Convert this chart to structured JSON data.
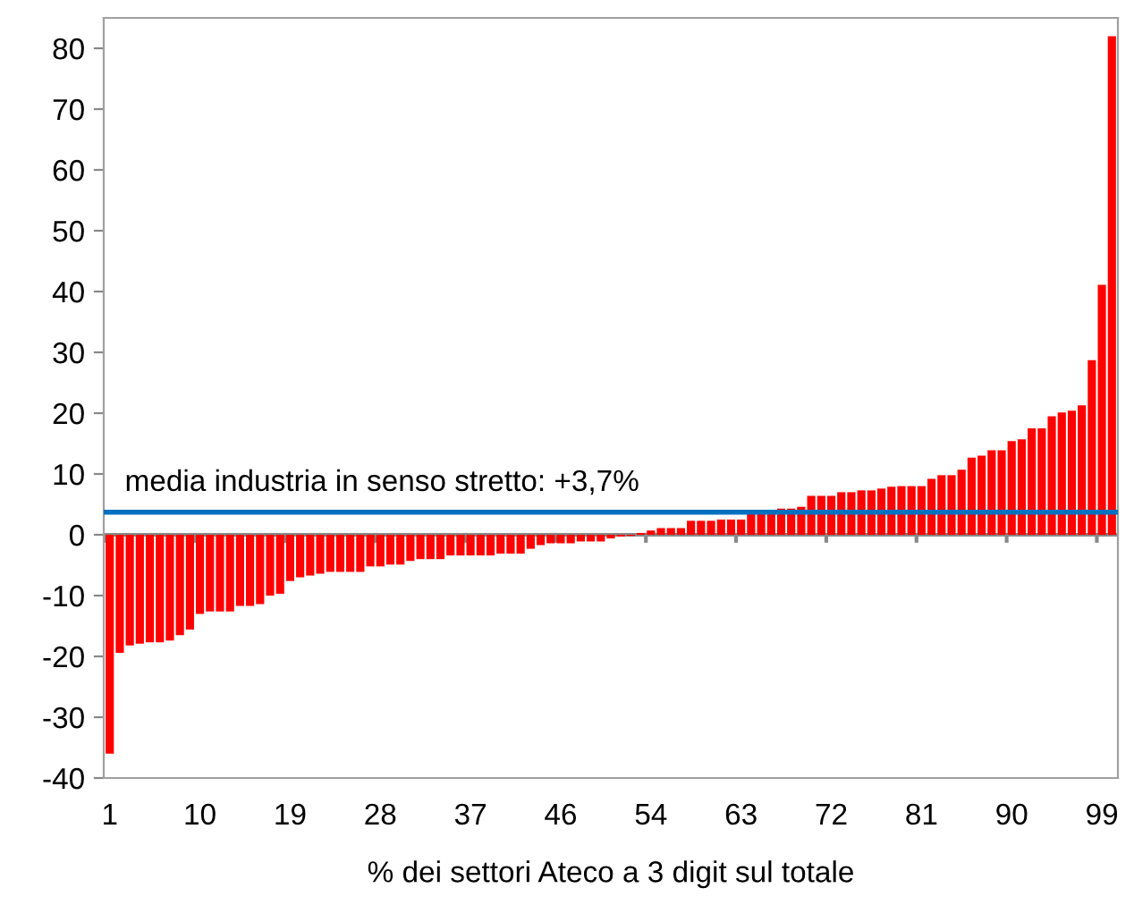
{
  "chart_data": {
    "type": "bar",
    "xlabel": "% dei settori Ateco a 3 digit sul totale",
    "categories": [
      "1",
      null,
      null,
      null,
      null,
      null,
      null,
      null,
      null,
      "10",
      null,
      null,
      null,
      null,
      null,
      null,
      null,
      null,
      "19",
      null,
      null,
      null,
      null,
      null,
      null,
      null,
      null,
      "28",
      null,
      null,
      null,
      null,
      null,
      null,
      null,
      null,
      "37",
      null,
      null,
      null,
      null,
      null,
      null,
      null,
      null,
      "46",
      null,
      null,
      null,
      null,
      null,
      null,
      null,
      null,
      "54",
      null,
      null,
      null,
      null,
      null,
      null,
      null,
      null,
      "63",
      null,
      null,
      null,
      null,
      null,
      null,
      null,
      null,
      "72",
      null,
      null,
      null,
      null,
      null,
      null,
      null,
      null,
      "81",
      null,
      null,
      null,
      null,
      null,
      null,
      null,
      null,
      "90",
      null,
      null,
      null,
      null,
      null,
      null,
      null,
      null,
      "99",
      null
    ],
    "values": [
      -36,
      -19.4,
      -18.2,
      -17.9,
      -17.7,
      -17.7,
      -17.4,
      -16.5,
      -15.6,
      -13,
      -12.6,
      -12.6,
      -12.6,
      -11.7,
      -11.7,
      -11.4,
      -10.0,
      -9.7,
      -7.6,
      -7.0,
      -6.7,
      -6.4,
      -6.1,
      -6.1,
      -6.1,
      -6.1,
      -5.2,
      -5.2,
      -4.9,
      -4.9,
      -4.3,
      -4.0,
      -4.0,
      -4.0,
      -3.4,
      -3.4,
      -3.4,
      -3.4,
      -3.4,
      -3.1,
      -3.1,
      -3.1,
      -2.3,
      -1.7,
      -1.4,
      -1.4,
      -1.4,
      -1.1,
      -1.1,
      -1.1,
      -0.6,
      -0.3,
      -0.2,
      0.3,
      0.7,
      1.1,
      1.1,
      1.1,
      2.3,
      2.3,
      2.3,
      2.5,
      2.5,
      2.5,
      3.4,
      3.4,
      3.4,
      4.3,
      4.3,
      4.6,
      6.4,
      6.4,
      6.4,
      7.0,
      7.0,
      7.3,
      7.3,
      7.6,
      7.9,
      8.0,
      8.0,
      8.0,
      9.2,
      9.8,
      9.8,
      10.7,
      12.7,
      13.0,
      13.9,
      13.9,
      15.4,
      15.7,
      17.5,
      17.5,
      19.5,
      20.1,
      20.4,
      21.3,
      28.7,
      41.1,
      82
    ],
    "color": "#ff0000",
    "ylim": [
      -40,
      85
    ],
    "yticks": [
      -40,
      -30,
      -20,
      -10,
      0,
      10,
      20,
      30,
      40,
      50,
      60,
      70,
      80
    ],
    "ref_lines": [
      {
        "axis": "y",
        "value": 3.7,
        "label": "media industria in senso stretto: +3,7%",
        "color": "#0070c0"
      }
    ],
    "legend": false
  }
}
